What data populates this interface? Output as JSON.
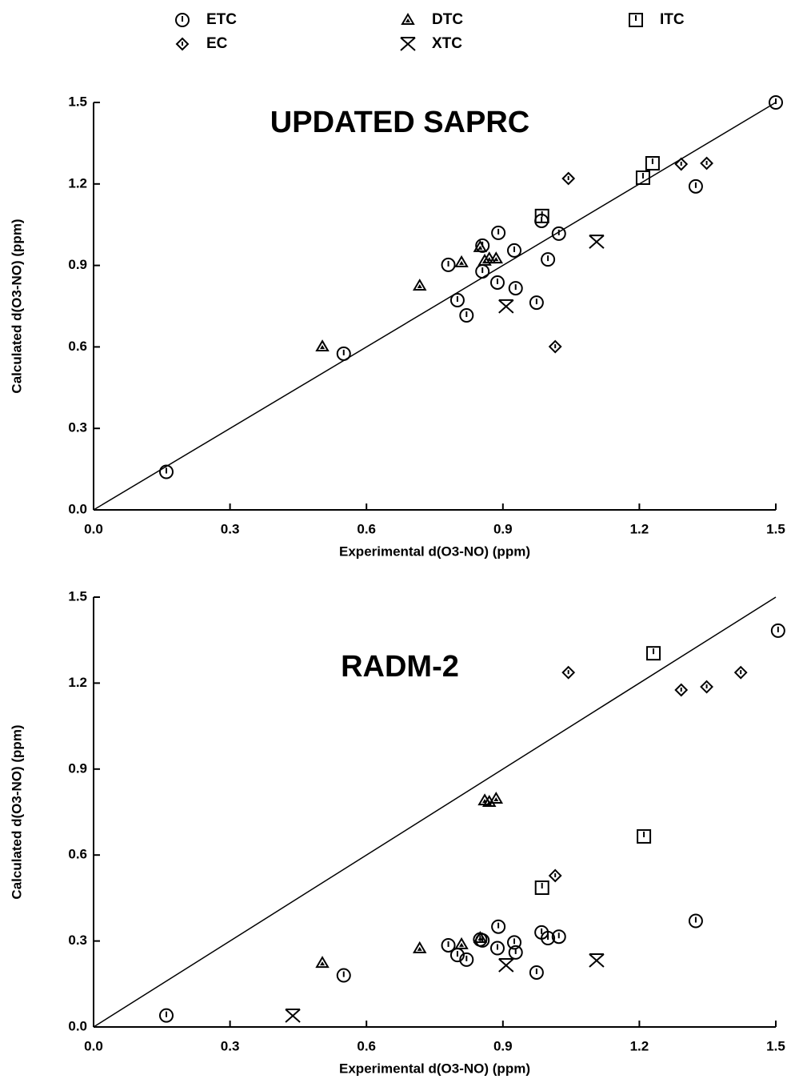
{
  "chart_data": [
    {
      "type": "scatter",
      "title": "UPDATED SAPRC",
      "x_label": "Experimental  d(O3-NO)  (ppm)",
      "y_label": "Calculated  d(O3-NO)  (ppm)",
      "xlim": [
        0,
        1.5
      ],
      "ylim": [
        0,
        1.5
      ],
      "xticks": [
        {
          "value": 0,
          "label": "0.0"
        },
        0.3,
        0.6,
        0.9,
        1.2,
        1.5
      ],
      "yticks": [
        {
          "value": 0,
          "label": "0.0"
        },
        0.3,
        0.6,
        0.9,
        1.2,
        1.5
      ],
      "series": [
        {
          "name": "ETC",
          "color": "#000000",
          "marker": "circle",
          "x": [
            0.16,
            0.55,
            0.8,
            0.82,
            0.78,
            0.855,
            0.855,
            0.89,
            0.888,
            0.925,
            0.928,
            0.974,
            0.999,
            0.985,
            1.023,
            1.324,
            1.5
          ],
          "values": [
            0.14,
            0.575,
            0.772,
            0.716,
            0.902,
            0.878,
            0.973,
            1.02,
            0.837,
            0.955,
            0.816,
            0.763,
            0.922,
            1.064,
            1.017,
            1.191,
            1.5
          ]
        },
        {
          "name": "EC",
          "color": "#000000",
          "marker": "diamond",
          "x": [
            1.044,
            1.015,
            1.292,
            1.348
          ],
          "values": [
            1.22,
            0.601,
            1.273,
            1.276
          ]
        },
        {
          "name": "DTC",
          "color": "#000000",
          "marker": "triangle",
          "x": [
            0.503,
            0.717,
            0.809,
            0.86,
            0.885,
            0.87,
            0.85
          ],
          "values": [
            0.601,
            0.825,
            0.911,
            0.917,
            0.925,
            0.925,
            0.967
          ]
        },
        {
          "name": "XTC",
          "color": "#000000",
          "marker": "x",
          "x": [
            0.907,
            1.106
          ],
          "values": [
            0.749,
            0.987
          ]
        },
        {
          "name": "ITC",
          "color": "#000000",
          "marker": "square",
          "x": [
            0.986,
            1.208,
            1.229
          ],
          "values": [
            1.082,
            1.223,
            1.276
          ]
        }
      ]
    },
    {
      "type": "scatter",
      "title": "RADM-2",
      "x_label": "Experimental  d(O3-NO)  (ppm)",
      "y_label": "Calculated  d(O3-NO)  (ppm)",
      "xlim": [
        0,
        1.5
      ],
      "ylim": [
        0,
        1.5
      ],
      "xticks": [
        {
          "value": 0,
          "label": "0.0"
        },
        0.3,
        0.6,
        0.9,
        1.2,
        1.5
      ],
      "yticks": [
        {
          "value": 0,
          "label": "0.0"
        },
        0.3,
        0.6,
        0.9,
        1.2,
        1.5
      ],
      "series": [
        {
          "name": "ETC",
          "color": "#000000",
          "marker": "circle",
          "x": [
            0.16,
            0.55,
            0.8,
            0.82,
            0.78,
            0.855,
            0.85,
            0.89,
            0.888,
            0.925,
            0.928,
            0.974,
            0.999,
            0.985,
            1.023,
            1.324,
            1.505
          ],
          "values": [
            0.04,
            0.18,
            0.251,
            0.235,
            0.285,
            0.302,
            0.305,
            0.35,
            0.275,
            0.295,
            0.26,
            0.19,
            0.31,
            0.33,
            0.315,
            0.37,
            1.383
          ]
        },
        {
          "name": "EC",
          "color": "#000000",
          "marker": "diamond",
          "x": [
            1.044,
            1.015,
            1.292,
            1.348,
            1.423
          ],
          "values": [
            1.237,
            0.528,
            1.176,
            1.187,
            1.237
          ]
        },
        {
          "name": "DTC",
          "color": "#000000",
          "marker": "triangle",
          "x": [
            0.503,
            0.717,
            0.809,
            0.86,
            0.885,
            0.87,
            0.85
          ],
          "values": [
            0.223,
            0.274,
            0.288,
            0.79,
            0.796,
            0.785,
            0.31
          ]
        },
        {
          "name": "XTC",
          "color": "#000000",
          "marker": "x",
          "x": [
            0.438,
            0.907,
            1.106
          ],
          "values": [
            0.039,
            0.215,
            0.232
          ]
        },
        {
          "name": "ITC",
          "color": "#000000",
          "marker": "square",
          "x": [
            1.231,
            1.21,
            0.986
          ],
          "values": [
            1.304,
            0.665,
            0.486
          ]
        }
      ]
    }
  ]
}
